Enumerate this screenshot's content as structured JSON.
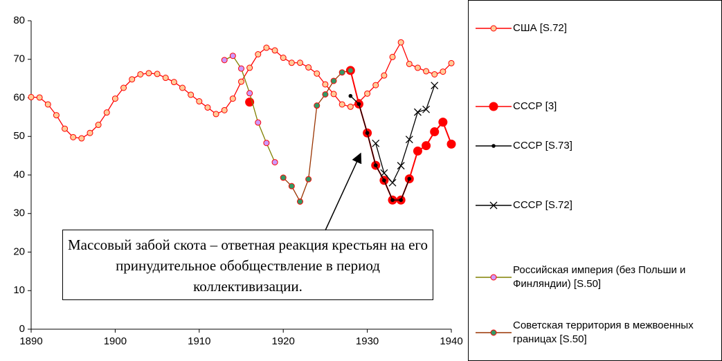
{
  "chart_data": {
    "type": "line",
    "xlim": [
      1890,
      1940
    ],
    "xticks": [
      1890,
      1900,
      1910,
      1920,
      1930,
      1940
    ],
    "ylim": [
      0,
      80
    ],
    "yticks": [
      0,
      10,
      20,
      30,
      40,
      50,
      60,
      70,
      80
    ],
    "annotation": "Массовый забой скота – ответная реакция крестьян на его принудительное обобществление в период коллективизации.",
    "series": [
      {
        "name": "США [S.72]",
        "color": "#ff0000",
        "marker": "circle",
        "marker_color": "#ffcc99",
        "x": [
          1890,
          1891,
          1892,
          1893,
          1894,
          1895,
          1896,
          1897,
          1898,
          1899,
          1900,
          1901,
          1902,
          1903,
          1904,
          1905,
          1906,
          1907,
          1908,
          1909,
          1910,
          1911,
          1912,
          1913,
          1914,
          1915,
          1916,
          1917,
          1918,
          1919,
          1920,
          1921,
          1922,
          1923,
          1924,
          1925,
          1926,
          1927,
          1928,
          1929,
          1930,
          1931,
          1932,
          1933,
          1934,
          1935,
          1936,
          1937,
          1938,
          1939,
          1940
        ],
        "values": [
          60.2,
          60.1,
          58.3,
          55.5,
          52,
          49.8,
          49.5,
          50.9,
          53,
          56.2,
          59.8,
          62.6,
          64.8,
          66.1,
          66.4,
          66.2,
          65.2,
          64.1,
          62.6,
          60.8,
          59.1,
          57.5,
          55.8,
          56.8,
          59.8,
          64.2,
          67.8,
          71.3,
          73,
          72.3,
          70.4,
          69.1,
          69.1,
          67.9,
          66.3,
          63.5,
          61,
          58.3,
          57.7,
          58.9,
          61.1,
          63.3,
          65.8,
          70.6,
          74.4,
          68.8,
          67.8,
          66.9,
          66.1,
          66.8,
          69
        ]
      },
      {
        "name": "СССР [3]",
        "color": "#ff0000",
        "marker": "big",
        "marker_color": "#ff0000",
        "x": [
          1916,
          1927,
          1928,
          1929,
          1930,
          1931,
          1932,
          1933,
          1934,
          1935,
          1936,
          1937,
          1938,
          1939,
          1940
        ],
        "values": [
          58.9,
          null,
          67.1,
          58.4,
          50.9,
          42.5,
          38.6,
          33.5,
          33.5,
          39,
          46.2,
          47.6,
          51.2,
          53.7,
          48
        ]
      },
      {
        "name": "СССР [S.73]",
        "color": "#000000",
        "marker": "dot",
        "marker_color": "#000000",
        "x": [
          1928,
          1929,
          1930,
          1931,
          1932,
          1933,
          1934,
          1935
        ],
        "values": [
          60.5,
          58.4,
          50.9,
          42.5,
          38.6,
          33.5,
          33.5,
          39
        ]
      },
      {
        "name": "СССР [S.72]",
        "color": "#000000",
        "marker": "cross",
        "marker_color": "#000000",
        "x": [
          1931,
          1932,
          1933,
          1934,
          1935,
          1936,
          1937,
          1938
        ],
        "values": [
          48.2,
          40.5,
          38,
          42.4,
          49.2,
          56.3,
          57,
          63.2
        ]
      },
      {
        "name": "Российская империя (без Польши и Финляндии) [S.50]",
        "color": "#808000",
        "marker": "circle",
        "marker_color": "#cc99ff",
        "x": [
          1913,
          1914,
          1915,
          1916,
          1917,
          1918,
          1919
        ],
        "values": [
          69.8,
          70.9,
          67.6,
          61.2,
          53.6,
          48.3,
          43.3
        ]
      },
      {
        "name": "Советская территория в межвоенных границах [S.50]",
        "color": "#993300",
        "marker": "circle",
        "marker_color": "#339966",
        "x": [
          1920,
          1921,
          1922,
          1923,
          1924,
          1925,
          1926,
          1927,
          1928
        ],
        "values": [
          39.3,
          37.1,
          33.1,
          38.9,
          58,
          60.9,
          64.4,
          66.6,
          67.1
        ]
      }
    ]
  }
}
